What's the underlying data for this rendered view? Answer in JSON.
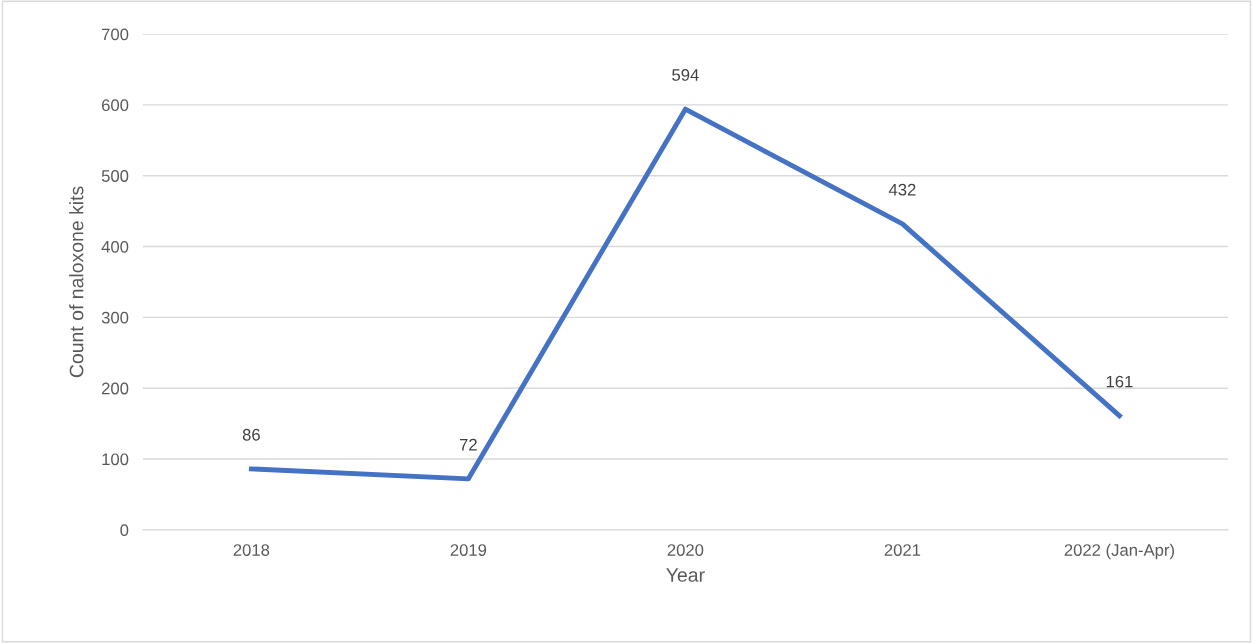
{
  "chart_data": {
    "type": "line",
    "xlabel": "Year",
    "ylabel": "Count of naloxone kits",
    "categories": [
      "2018",
      "2019",
      "2020",
      "2021",
      "2022 (Jan-Apr)"
    ],
    "series": [
      {
        "color": "#4472c4",
        "values": [
          86,
          72,
          594,
          432,
          161
        ]
      }
    ],
    "ylim": [
      0,
      700
    ],
    "yticks": [
      0,
      100,
      200,
      300,
      400,
      500,
      600,
      700
    ],
    "grid": "y",
    "data_labels": true,
    "marker": "none",
    "line_style": "solid",
    "legend": false
  }
}
